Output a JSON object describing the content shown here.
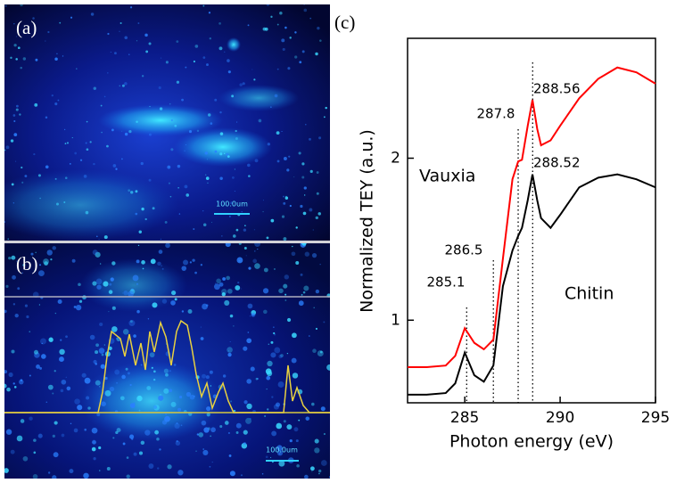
{
  "panels": {
    "a": {
      "label": "(a)",
      "scale_bar": "100.0um"
    },
    "b": {
      "label": "(b)",
      "scale_bar": "100.0um"
    }
  },
  "chart_data": {
    "type": "line",
    "panel_label": "(c)",
    "x_label": "Photon energy (eV)",
    "y_label": "Normalized TEY (a.u.)",
    "x": [
      282,
      283,
      284,
      284.5,
      285,
      285.5,
      286,
      286.5,
      287,
      287.5,
      287.8,
      288,
      288.3,
      288.55,
      288.8,
      289,
      289.5,
      290,
      291,
      292,
      293,
      294,
      295
    ],
    "series": [
      {
        "name": "Vauxia",
        "color": "#ff0000",
        "values": [
          0.71,
          0.71,
          0.72,
          0.78,
          0.95,
          0.86,
          0.82,
          0.88,
          1.38,
          1.87,
          1.98,
          1.99,
          2.2,
          2.36,
          2.18,
          2.08,
          2.11,
          2.2,
          2.37,
          2.49,
          2.56,
          2.53,
          2.46
        ]
      },
      {
        "name": "Chitin",
        "color": "#000000",
        "values": [
          0.54,
          0.54,
          0.55,
          0.61,
          0.8,
          0.66,
          0.62,
          0.72,
          1.21,
          1.43,
          1.52,
          1.57,
          1.74,
          1.9,
          1.74,
          1.63,
          1.57,
          1.65,
          1.82,
          1.88,
          1.9,
          1.87,
          1.82
        ]
      }
    ],
    "annotations": [
      {
        "label": "285.1",
        "x": 285.1
      },
      {
        "label": "286.5",
        "x": 286.5
      },
      {
        "label": "287.8",
        "x": 287.8
      },
      {
        "label": "288.56",
        "x": 288.56
      },
      {
        "label": "288.52",
        "x": 288.52
      }
    ],
    "xlim": [
      282,
      295
    ],
    "ylim": [
      0.49,
      2.74
    ],
    "xticks": [
      285,
      290,
      295
    ],
    "yticks": [
      1,
      2
    ]
  }
}
